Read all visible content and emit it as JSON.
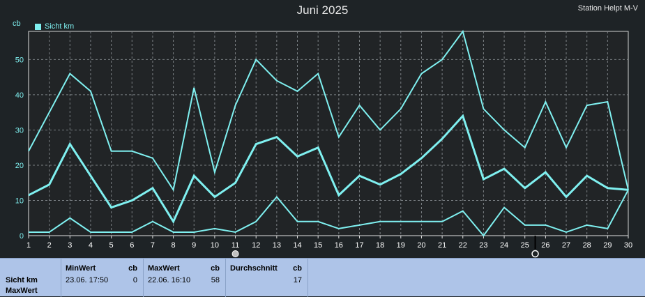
{
  "header": {
    "title": "Juni 2025",
    "station": "Station Helpt M-V",
    "unit": "cb",
    "legend_label": "Sicht km",
    "legend_color": "#7ff0f0"
  },
  "chart_data": {
    "type": "line",
    "title": "Juni 2025",
    "ylabel": "cb",
    "xlim": [
      1,
      30
    ],
    "ylim": [
      0,
      58
    ],
    "grid": true,
    "x": [
      1,
      2,
      3,
      4,
      5,
      6,
      7,
      8,
      9,
      10,
      11,
      12,
      13,
      14,
      15,
      16,
      17,
      18,
      19,
      20,
      21,
      22,
      23,
      24,
      25,
      26,
      27,
      28,
      29,
      30
    ],
    "x_ticks": [
      "1",
      "2",
      "3",
      "4",
      "5",
      "6",
      "7",
      "8",
      "9",
      "10",
      "11",
      "12",
      "13",
      "14",
      "15",
      "16",
      "17",
      "18",
      "19",
      "20",
      "21",
      "22",
      "23",
      "24",
      "25",
      "26",
      "27",
      "28",
      "29",
      "30"
    ],
    "y_ticks": [
      "0",
      "10",
      "20",
      "30",
      "40",
      "50"
    ],
    "series": [
      {
        "name": "Sicht km",
        "color": "#7ff0f0",
        "values": [
          24,
          35,
          46,
          41,
          24,
          24,
          22,
          13,
          42,
          18,
          37,
          50,
          44,
          41,
          46,
          28,
          37,
          30,
          36,
          46,
          50,
          58,
          36,
          30,
          25,
          38,
          25,
          37,
          38,
          13
        ]
      },
      {
        "color": "#7ff0f0",
        "values": [
          11.5,
          14.5,
          26,
          17,
          8,
          10,
          13.5,
          4,
          17,
          11,
          15,
          26,
          28,
          22.5,
          25,
          11.5,
          17,
          14.5,
          17.5,
          22,
          27.5,
          34,
          16,
          19,
          13.5,
          18,
          11,
          17,
          13.5,
          13
        ]
      },
      {
        "color": "#7ff0f0",
        "values": [
          1,
          1,
          5,
          1,
          1,
          1,
          4,
          1,
          1,
          2,
          1,
          4,
          11,
          4,
          4,
          2,
          3,
          4,
          4,
          4,
          4,
          7,
          0,
          8,
          3,
          3,
          1,
          3,
          2,
          13
        ]
      }
    ],
    "moon_markers": [
      {
        "day": 11,
        "symbol": "new-moon"
      },
      {
        "day": 25.5,
        "symbol": "full-moon"
      }
    ]
  },
  "panel": {
    "row_label_1": "Sicht km",
    "row_label_2": "MaxWert",
    "min_header": "MinWert",
    "min_unit": "cb",
    "min_time": "23.06.  17:50",
    "min_value": "0",
    "max_header": "MaxWert",
    "max_unit": "cb",
    "max_time": "22.06.  16:10",
    "max_value": "58",
    "avg_header": "Durchschnitt",
    "avg_unit": "cb",
    "avg_value": "17"
  }
}
